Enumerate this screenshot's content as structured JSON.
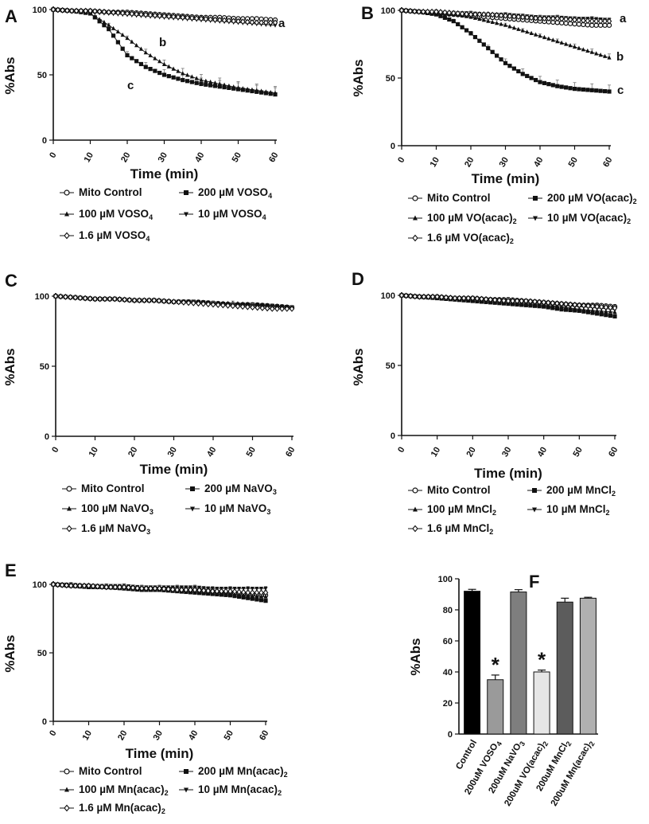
{
  "chart_data": [
    {
      "type": "line",
      "panel": "A",
      "xlabel": "Time (min)",
      "ylabel": "%Abs",
      "xlim": [
        0,
        60
      ],
      "ylim": [
        0,
        100
      ],
      "xticks": [
        "0",
        "10",
        "20",
        "30",
        "40",
        "50",
        "60"
      ],
      "yticks": [
        "0",
        "50",
        "100"
      ],
      "series": [
        {
          "name": "Mito Control",
          "x": [
            0,
            5,
            10,
            15,
            20,
            25,
            30,
            35,
            40,
            45,
            50,
            55,
            60
          ],
          "values": [
            100,
            99,
            99,
            98,
            98,
            97,
            96,
            95,
            94,
            94,
            93,
            93,
            92
          ]
        },
        {
          "name": "200 µM VOSO4",
          "x": [
            0,
            5,
            10,
            15,
            20,
            25,
            30,
            35,
            40,
            45,
            50,
            55,
            60
          ],
          "values": [
            100,
            99,
            97,
            85,
            65,
            56,
            50,
            46,
            43,
            41,
            39,
            37,
            35
          ]
        },
        {
          "name": "100 µM VOSO4",
          "x": [
            0,
            5,
            10,
            15,
            20,
            25,
            30,
            35,
            40,
            45,
            50,
            55,
            60
          ],
          "values": [
            100,
            99,
            97,
            88,
            78,
            67,
            58,
            51,
            46,
            43,
            40,
            38,
            36
          ]
        },
        {
          "name": "10 µM VOSO4",
          "x": [
            0,
            5,
            10,
            15,
            20,
            25,
            30,
            35,
            40,
            45,
            50,
            55,
            60
          ],
          "values": [
            100,
            99,
            98,
            97,
            96,
            95,
            94,
            93,
            92,
            91,
            90,
            89,
            88
          ]
        },
        {
          "name": "1.6 µM VOSO4",
          "x": [
            0,
            5,
            10,
            15,
            20,
            25,
            30,
            35,
            40,
            45,
            50,
            55,
            60
          ],
          "values": [
            100,
            99,
            99,
            98,
            97,
            96,
            95,
            94,
            93,
            92,
            91,
            90,
            90
          ]
        }
      ],
      "legend": [
        "Mito Control",
        "200 µM VOSO4",
        "100 µM VOSO4",
        "10 µM VOSO4",
        "1.6 µM VOSO4"
      ],
      "annotations": [
        "a",
        "b",
        "c"
      ]
    },
    {
      "type": "line",
      "panel": "B",
      "xlabel": "Time (min)",
      "ylabel": "%Abs",
      "xlim": [
        0,
        60
      ],
      "ylim": [
        0,
        100
      ],
      "xticks": [
        "0",
        "10",
        "20",
        "30",
        "40",
        "50",
        "60"
      ],
      "yticks": [
        "0",
        "50",
        "100"
      ],
      "series": [
        {
          "name": "Mito Control",
          "x": [
            0,
            5,
            10,
            15,
            20,
            25,
            30,
            35,
            40,
            45,
            50,
            55,
            60
          ],
          "values": [
            100,
            99,
            98,
            97,
            96,
            95,
            94,
            93,
            92,
            91,
            90,
            89,
            89
          ]
        },
        {
          "name": "200 µM VO(acac)2",
          "x": [
            0,
            5,
            10,
            15,
            20,
            25,
            30,
            35,
            40,
            45,
            50,
            55,
            60
          ],
          "values": [
            100,
            99,
            97,
            92,
            83,
            72,
            61,
            53,
            47,
            44,
            42,
            41,
            40
          ]
        },
        {
          "name": "100 µM VO(acac)2",
          "x": [
            0,
            5,
            10,
            15,
            20,
            25,
            30,
            35,
            40,
            45,
            50,
            55,
            60
          ],
          "values": [
            100,
            99,
            98,
            97,
            95,
            92,
            89,
            85,
            81,
            77,
            73,
            69,
            65
          ]
        },
        {
          "name": "10 µM VO(acac)2",
          "x": [
            0,
            5,
            10,
            15,
            20,
            25,
            30,
            35,
            40,
            45,
            50,
            55,
            60
          ],
          "values": [
            100,
            99,
            99,
            98,
            98,
            97,
            97,
            96,
            95,
            95,
            94,
            94,
            93
          ]
        },
        {
          "name": "1.6 µM VO(acac)2",
          "x": [
            0,
            5,
            10,
            15,
            20,
            25,
            30,
            35,
            40,
            45,
            50,
            55,
            60
          ],
          "values": [
            100,
            99,
            99,
            98,
            97,
            97,
            96,
            95,
            94,
            94,
            93,
            92,
            92
          ]
        }
      ],
      "legend": [
        "Mito Control",
        "200 µM VO(acac)2",
        "100 µM VO(acac)2",
        "10 µM VO(acac)2",
        "1.6 µM VO(acac)2"
      ],
      "annotations": [
        "a",
        "b",
        "c"
      ]
    },
    {
      "type": "line",
      "panel": "C",
      "xlabel": "Time (min)",
      "ylabel": "%Abs",
      "xlim": [
        0,
        60
      ],
      "ylim": [
        0,
        100
      ],
      "xticks": [
        "0",
        "10",
        "20",
        "30",
        "40",
        "50",
        "60"
      ],
      "yticks": [
        "0",
        "50",
        "100"
      ],
      "series": [
        {
          "name": "Mito Control",
          "x": [
            0,
            5,
            10,
            15,
            20,
            25,
            30,
            35,
            40,
            45,
            50,
            55,
            60
          ],
          "values": [
            100,
            99,
            98,
            98,
            97,
            97,
            96,
            96,
            95,
            94,
            94,
            93,
            92
          ]
        },
        {
          "name": "200 µM NaVO3",
          "x": [
            0,
            5,
            10,
            15,
            20,
            25,
            30,
            35,
            40,
            45,
            50,
            55,
            60
          ],
          "values": [
            100,
            99,
            98,
            98,
            97,
            97,
            96,
            96,
            95,
            94,
            94,
            93,
            92
          ]
        },
        {
          "name": "100 µM NaVO3",
          "x": [
            0,
            5,
            10,
            15,
            20,
            25,
            30,
            35,
            40,
            45,
            50,
            55,
            60
          ],
          "values": [
            100,
            99,
            98,
            98,
            97,
            97,
            96,
            96,
            95,
            95,
            94,
            93,
            92
          ]
        },
        {
          "name": "10 µM NaVO3",
          "x": [
            0,
            5,
            10,
            15,
            20,
            25,
            30,
            35,
            40,
            45,
            50,
            55,
            60
          ],
          "values": [
            100,
            99,
            98,
            98,
            97,
            97,
            96,
            96,
            95,
            94,
            93,
            93,
            92
          ]
        },
        {
          "name": "1.6 µM NaVO3",
          "x": [
            0,
            5,
            10,
            15,
            20,
            25,
            30,
            35,
            40,
            45,
            50,
            55,
            60
          ],
          "values": [
            100,
            99,
            98,
            98,
            97,
            97,
            96,
            95,
            94,
            93,
            92,
            91,
            91
          ]
        }
      ],
      "legend": [
        "Mito Control",
        "200 µM NaVO3",
        "100 µM NaVO3",
        "10 µM NaVO3",
        "1.6 µM NaVO3"
      ]
    },
    {
      "type": "line",
      "panel": "D",
      "xlabel": "Time (min)",
      "ylabel": "%Abs",
      "xlim": [
        0,
        60
      ],
      "ylim": [
        0,
        100
      ],
      "xticks": [
        "0",
        "10",
        "20",
        "30",
        "40",
        "50",
        "60"
      ],
      "yticks": [
        "0",
        "50",
        "100"
      ],
      "series": [
        {
          "name": "Mito Control",
          "x": [
            0,
            5,
            10,
            15,
            20,
            25,
            30,
            35,
            40,
            45,
            50,
            55,
            60
          ],
          "values": [
            100,
            99,
            99,
            98,
            98,
            97,
            97,
            96,
            95,
            94,
            93,
            93,
            92
          ]
        },
        {
          "name": "200 µM MnCl2",
          "x": [
            0,
            5,
            10,
            15,
            20,
            25,
            30,
            35,
            40,
            45,
            50,
            55,
            60
          ],
          "values": [
            100,
            99,
            98,
            97,
            96,
            95,
            94,
            93,
            92,
            90,
            89,
            87,
            85
          ]
        },
        {
          "name": "100 µM MnCl2",
          "x": [
            0,
            5,
            10,
            15,
            20,
            25,
            30,
            35,
            40,
            45,
            50,
            55,
            60
          ],
          "values": [
            100,
            99,
            98,
            98,
            97,
            96,
            95,
            94,
            93,
            92,
            90,
            89,
            88
          ]
        },
        {
          "name": "10 µM MnCl2",
          "x": [
            0,
            5,
            10,
            15,
            20,
            25,
            30,
            35,
            40,
            45,
            50,
            55,
            60
          ],
          "values": [
            100,
            99,
            99,
            98,
            97,
            97,
            96,
            95,
            94,
            93,
            92,
            91,
            90
          ]
        },
        {
          "name": "1.6 µM MnCl2",
          "x": [
            0,
            5,
            10,
            15,
            20,
            25,
            30,
            35,
            40,
            45,
            50,
            55,
            60
          ],
          "values": [
            100,
            99,
            99,
            98,
            98,
            97,
            96,
            96,
            95,
            94,
            93,
            92,
            91
          ]
        }
      ],
      "legend": [
        "Mito Control",
        "200 µM MnCl2",
        "100 µM MnCl2",
        "10 µM MnCl2",
        "1.6 µM MnCl2"
      ]
    },
    {
      "type": "line",
      "panel": "E",
      "xlabel": "Time (min)",
      "ylabel": "%Abs",
      "xlim": [
        0,
        60
      ],
      "ylim": [
        0,
        100
      ],
      "xticks": [
        "0",
        "10",
        "20",
        "30",
        "40",
        "50",
        "60"
      ],
      "yticks": [
        "0",
        "50",
        "100"
      ],
      "series": [
        {
          "name": "Mito Control",
          "x": [
            0,
            5,
            10,
            15,
            20,
            25,
            30,
            35,
            40,
            45,
            50,
            55,
            60
          ],
          "values": [
            100,
            99,
            99,
            98,
            98,
            97,
            97,
            96,
            96,
            95,
            94,
            93,
            92
          ]
        },
        {
          "name": "200 µM Mn(acac)2",
          "x": [
            0,
            5,
            10,
            15,
            20,
            25,
            30,
            35,
            40,
            45,
            50,
            55,
            60
          ],
          "values": [
            100,
            99,
            98,
            98,
            97,
            96,
            96,
            95,
            94,
            93,
            92,
            90,
            88
          ]
        },
        {
          "name": "100 µM Mn(acac)2",
          "x": [
            0,
            5,
            10,
            15,
            20,
            25,
            30,
            35,
            40,
            45,
            50,
            55,
            60
          ],
          "values": [
            100,
            99,
            99,
            98,
            97,
            97,
            96,
            95,
            94,
            94,
            93,
            92,
            91
          ]
        },
        {
          "name": "10 µM Mn(acac)2",
          "x": [
            0,
            5,
            10,
            15,
            20,
            25,
            30,
            35,
            40,
            45,
            50,
            55,
            60
          ],
          "values": [
            100,
            100,
            99,
            99,
            99,
            98,
            98,
            98,
            98,
            97,
            97,
            97,
            97
          ]
        },
        {
          "name": "1.6 µM Mn(acac)2",
          "x": [
            0,
            5,
            10,
            15,
            20,
            25,
            30,
            35,
            40,
            45,
            50,
            55,
            60
          ],
          "values": [
            100,
            99,
            99,
            98,
            98,
            97,
            97,
            96,
            96,
            95,
            95,
            94,
            94
          ]
        }
      ],
      "legend": [
        "Mito Control",
        "200 µM Mn(acac)2",
        "100 µM Mn(acac)2",
        "10 µM Mn(acac)2",
        "1.6 µM Mn(acac)2"
      ]
    },
    {
      "type": "bar",
      "panel": "F",
      "ylabel": "%Abs",
      "ylim": [
        0,
        100
      ],
      "yticks": [
        "0",
        "20",
        "40",
        "60",
        "80",
        "100"
      ],
      "categories": [
        "Control",
        "200uM VOSO4",
        "200uM NaVO3",
        "200uM VO(acac)2",
        "200uM MnCl2",
        "200uM Mn(acac)2"
      ],
      "values": [
        92,
        35,
        91.5,
        40,
        85,
        87.5
      ],
      "errors": [
        1.2,
        3,
        1.5,
        1.2,
        2.5,
        0.6
      ],
      "significance": [
        "",
        "*",
        "",
        "*",
        "",
        ""
      ],
      "colors": [
        "#000000",
        "#9a9a9a",
        "#7e7e7e",
        "#e6e6e6",
        "#5c5c5c",
        "#b0b0b0"
      ]
    }
  ]
}
